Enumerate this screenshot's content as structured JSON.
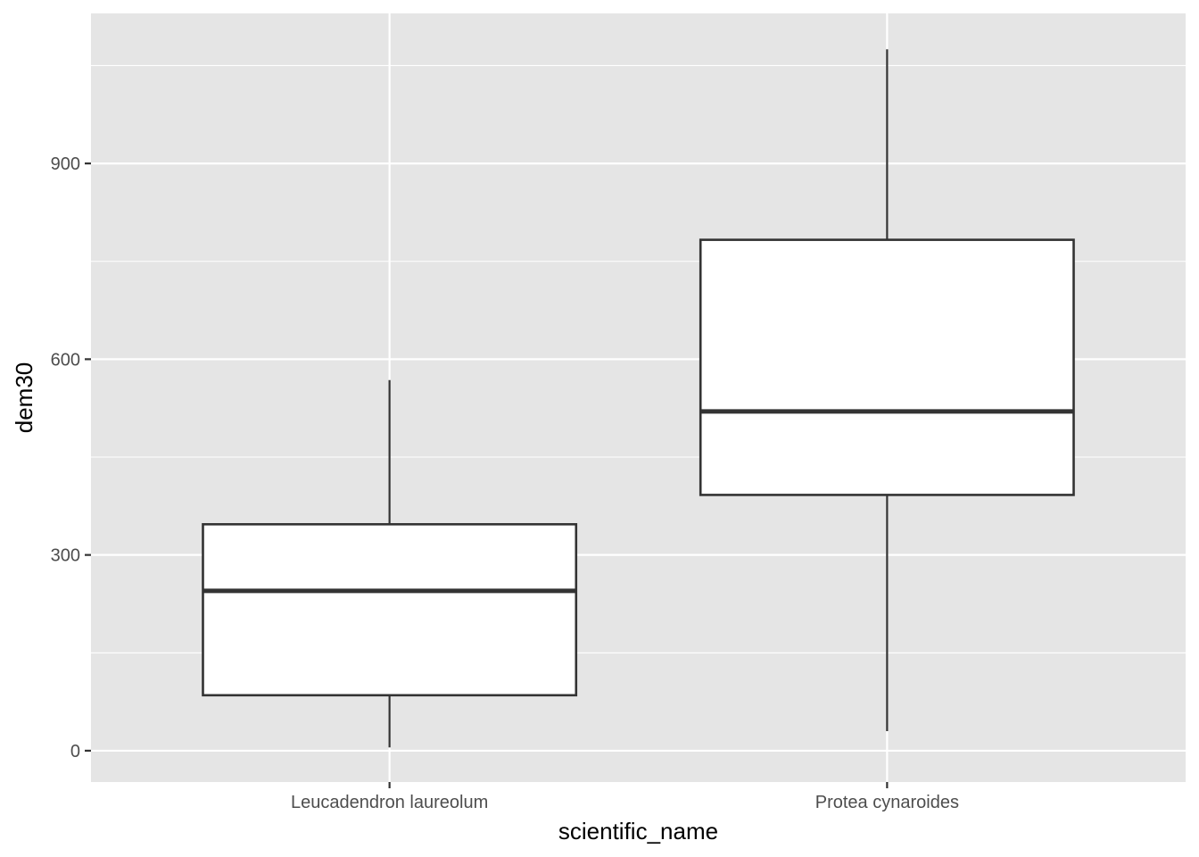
{
  "chart_data": {
    "type": "boxplot",
    "title": "",
    "xlabel": "scientific_name",
    "ylabel": "dem30",
    "categories": [
      "Leucadendron laureolum",
      "Protea cynaroides"
    ],
    "boxes": [
      {
        "category": "Leucadendron laureolum",
        "whisker_low": 5,
        "q1": 85,
        "median": 245,
        "q3": 347,
        "whisker_high": 568
      },
      {
        "category": "Protea cynaroides",
        "whisker_low": 30,
        "q1": 392,
        "median": 520,
        "q3": 783,
        "whisker_high": 1075
      }
    ],
    "ylim": [
      -48,
      1130
    ],
    "y_ticks": [
      0,
      300,
      600,
      900
    ],
    "y_tick_labels": [
      "0",
      "300",
      "600",
      "900"
    ],
    "grid": true,
    "colors": {
      "panel_background": "#e5e5e5",
      "grid": "#ffffff",
      "box_fill": "#ffffff",
      "box_line": "#333333",
      "tick_text": "#4d4d4d",
      "title_text": "#000000"
    }
  }
}
